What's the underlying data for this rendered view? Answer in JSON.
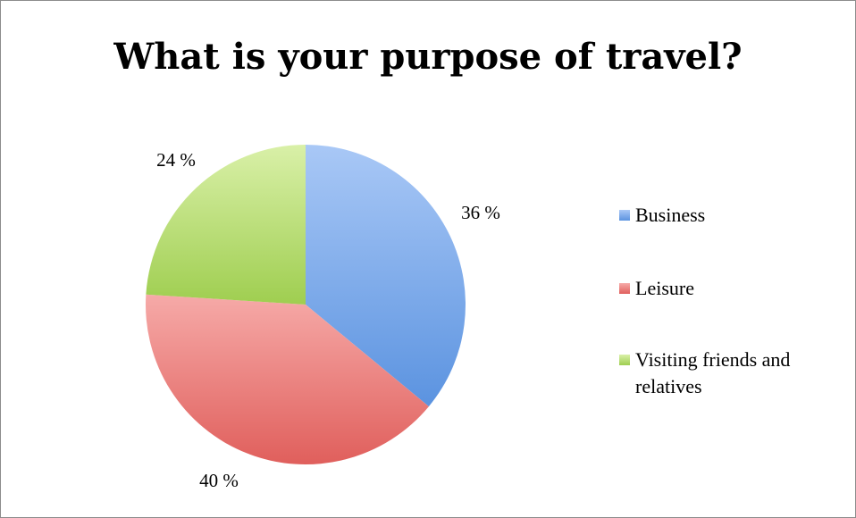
{
  "chart_data": {
    "type": "pie",
    "title": "What is your purpose of travel?",
    "slices": [
      {
        "label": "Business",
        "value": 36,
        "display": "36 %",
        "color": "#5b93e0",
        "light": "#a9c8f6"
      },
      {
        "label": "Leisure",
        "value": 40,
        "display": "40 %",
        "color": "#e05f5c",
        "light": "#f6aaa8"
      },
      {
        "label": "Visiting friends and relatives",
        "value": 24,
        "display": "24 %",
        "color": "#9fce50",
        "light": "#d9f0a8"
      }
    ],
    "legend_position": "right",
    "legend": [
      "Business",
      "Leisure",
      "Visiting friends and relatives"
    ]
  }
}
